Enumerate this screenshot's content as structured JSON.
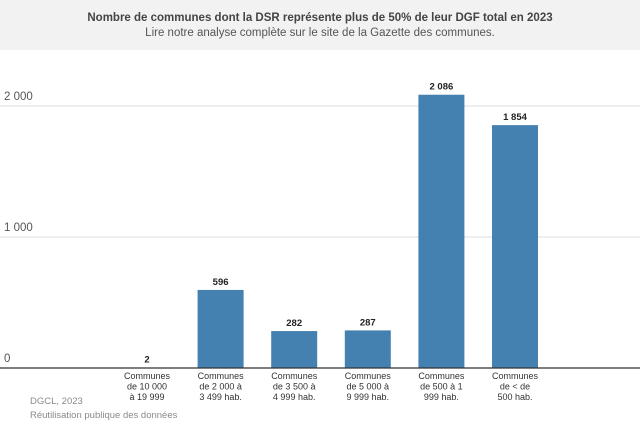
{
  "header": {
    "title": "Nombre de communes dont la DSR représente plus de 50% de leur DGF total en 2023",
    "subtitle": "Lire notre analyse complète sur le site de la Gazette des communes."
  },
  "footer": {
    "source": "DGCL, 2023",
    "note": "Réutilisation publique des données"
  },
  "colors": {
    "bar": "#4581b0",
    "grid": "#dddddd",
    "axis": "#333333",
    "tick_text": "#555555"
  },
  "chart_data": {
    "type": "bar",
    "categories": [
      "Communes de 10 000 à 19 999",
      "Communes de 2 000 à 3 499 hab.",
      "Communes de 3 500 à 4 999 hab.",
      "Communes de 5 000 à 9 999 hab.",
      "Communes de 500 à 1 999 hab.",
      "Communes de < de 500 hab."
    ],
    "category_lines": [
      [
        "Communes",
        "de 10 000",
        "à 19 999"
      ],
      [
        "Communes",
        "de 2 000 à",
        "3 499 hab."
      ],
      [
        "Communes",
        "de 3 500 à",
        "4 999 hab."
      ],
      [
        "Communes",
        "de 5 000 à",
        "9 999 hab."
      ],
      [
        "Communes",
        "de 500 à 1",
        "999 hab."
      ],
      [
        "Communes",
        "de < de",
        "500 hab."
      ]
    ],
    "values": [
      2,
      596,
      282,
      287,
      2086,
      1854
    ],
    "value_labels": [
      "2",
      "596",
      "282",
      "287",
      "2 086",
      "1 854"
    ],
    "yticks": [
      0,
      1000,
      2000
    ],
    "ytick_labels": [
      "0",
      "1 000",
      "2 000"
    ],
    "ylim": [
      0,
      2200
    ],
    "grid": true,
    "xlabel": "",
    "ylabel": ""
  }
}
